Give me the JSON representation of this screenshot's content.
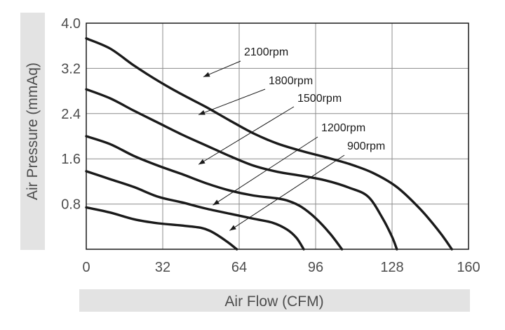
{
  "chart_data": {
    "type": "line",
    "xlabel": "Air Flow (CFM)",
    "ylabel": "Air Pressure (mmAq)",
    "xlim": [
      0,
      160
    ],
    "ylim": [
      0,
      4.0
    ],
    "x_ticks": [
      "0",
      "32",
      "64",
      "96",
      "128",
      "160"
    ],
    "y_ticks": [
      "0.8",
      "1.6",
      "2.4",
      "3.2",
      "4.0"
    ],
    "grid": true,
    "series": [
      {
        "name": "2100rpm",
        "points": [
          [
            0,
            3.73
          ],
          [
            10,
            3.55
          ],
          [
            20,
            3.25
          ],
          [
            30,
            2.98
          ],
          [
            40,
            2.74
          ],
          [
            50,
            2.52
          ],
          [
            60,
            2.28
          ],
          [
            70,
            2.05
          ],
          [
            80,
            1.87
          ],
          [
            90,
            1.74
          ],
          [
            100,
            1.63
          ],
          [
            110,
            1.51
          ],
          [
            120,
            1.35
          ],
          [
            130,
            1.1
          ],
          [
            140,
            0.7
          ],
          [
            148,
            0.3
          ],
          [
            153,
            0
          ]
        ]
      },
      {
        "name": "1800rpm",
        "points": [
          [
            0,
            2.83
          ],
          [
            10,
            2.67
          ],
          [
            20,
            2.45
          ],
          [
            30,
            2.24
          ],
          [
            40,
            2.03
          ],
          [
            50,
            1.84
          ],
          [
            60,
            1.65
          ],
          [
            70,
            1.48
          ],
          [
            80,
            1.37
          ],
          [
            90,
            1.3
          ],
          [
            100,
            1.22
          ],
          [
            110,
            1.09
          ],
          [
            118,
            0.93
          ],
          [
            124,
            0.55
          ],
          [
            128,
            0.22
          ],
          [
            130,
            0
          ]
        ]
      },
      {
        "name": "1500rpm",
        "points": [
          [
            0,
            2.0
          ],
          [
            10,
            1.86
          ],
          [
            20,
            1.65
          ],
          [
            30,
            1.48
          ],
          [
            40,
            1.33
          ],
          [
            50,
            1.17
          ],
          [
            60,
            1.04
          ],
          [
            70,
            0.95
          ],
          [
            80,
            0.9
          ],
          [
            85,
            0.85
          ],
          [
            90,
            0.75
          ],
          [
            96,
            0.55
          ],
          [
            102,
            0.28
          ],
          [
            107,
            0
          ]
        ]
      },
      {
        "name": "1200rpm",
        "points": [
          [
            0,
            1.38
          ],
          [
            10,
            1.24
          ],
          [
            20,
            1.1
          ],
          [
            30,
            0.93
          ],
          [
            40,
            0.83
          ],
          [
            50,
            0.72
          ],
          [
            60,
            0.63
          ],
          [
            70,
            0.54
          ],
          [
            78,
            0.47
          ],
          [
            84,
            0.35
          ],
          [
            88,
            0.2
          ],
          [
            91,
            0
          ]
        ]
      },
      {
        "name": "900rpm",
        "points": [
          [
            0,
            0.74
          ],
          [
            10,
            0.65
          ],
          [
            20,
            0.53
          ],
          [
            30,
            0.46
          ],
          [
            40,
            0.42
          ],
          [
            48,
            0.38
          ],
          [
            52,
            0.32
          ],
          [
            56,
            0.22
          ],
          [
            60,
            0.1
          ],
          [
            63,
            0
          ]
        ]
      }
    ],
    "annotations": [
      {
        "text": "2100rpm",
        "series": "2100rpm",
        "arrow_to": [
          49,
          3.05
        ]
      },
      {
        "text": "1800rpm",
        "series": "1800rpm",
        "arrow_to": [
          47,
          2.38
        ]
      },
      {
        "text": "1500rpm",
        "series": "1500rpm",
        "arrow_to": [
          47,
          1.5
        ]
      },
      {
        "text": "1200rpm",
        "series": "1200rpm",
        "arrow_to": [
          53,
          0.78
        ]
      },
      {
        "text": "900rpm",
        "series": "900rpm",
        "arrow_to": [
          60,
          0.33
        ]
      }
    ]
  }
}
